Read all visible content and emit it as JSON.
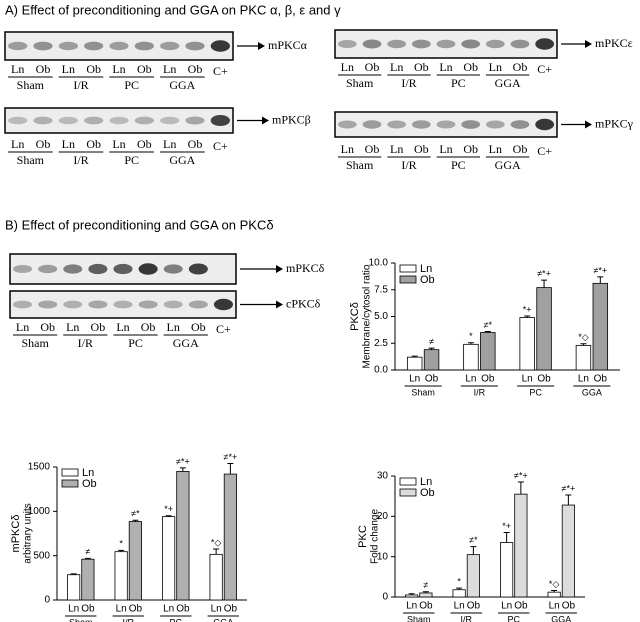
{
  "sections": {
    "a_title": "A) Effect of preconditioning and GGA on PKC α, β, ε and γ",
    "b_title": "B) Effect of preconditioning and GGA on PKCδ"
  },
  "blots": [
    {
      "label": "mPKCα"
    },
    {
      "label": "mPKCβ"
    },
    {
      "label": "mPKCε"
    },
    {
      "label": "mPKCγ"
    },
    {
      "label": "mPKCδ"
    },
    {
      "label": "cPKCδ"
    }
  ],
  "lanes": {
    "ln": "Ln",
    "ob": "Ob",
    "groups": [
      "Sham",
      "I/R",
      "PC",
      "GGA"
    ],
    "control": "C+"
  },
  "chart_data": [
    {
      "type": "bar",
      "ylabel": [
        "PKCδ",
        "Membrane/cytosol ratio"
      ],
      "categories": [
        "Sham",
        "I/R",
        "PC",
        "GGA"
      ],
      "series": [
        {
          "name": "Ln",
          "color": "#ffffff",
          "values": [
            1.2,
            2.4,
            4.9,
            2.3
          ],
          "errors": [
            0.1,
            0.15,
            0.15,
            0.15
          ],
          "annotations": [
            null,
            "*",
            "*+",
            "*◇"
          ]
        },
        {
          "name": "Ob",
          "color": "#a0a0a0",
          "values": [
            1.9,
            3.5,
            7.7,
            8.1
          ],
          "errors": [
            0.15,
            0.1,
            0.7,
            0.6
          ],
          "annotations": [
            "≠",
            "≠*",
            "≠*+",
            "≠*+"
          ]
        }
      ],
      "ylim": [
        0,
        10
      ],
      "yticks": [
        {
          "value": 0,
          "label": "0.0"
        },
        {
          "value": 2.5,
          "label": "2.5"
        },
        {
          "value": 5,
          "label": "5.0"
        },
        {
          "value": 7.5,
          "label": "7.5"
        },
        {
          "value": 10,
          "label": "10.0"
        }
      ],
      "legend": "upper left"
    },
    {
      "type": "bar",
      "ylabel": [
        "mPKCδ",
        "arbitrary units"
      ],
      "categories": [
        "Sham",
        "I/R",
        "PC",
        "GGA"
      ],
      "series": [
        {
          "name": "Ln",
          "color": "#ffffff",
          "values": [
            285,
            545,
            940,
            515
          ],
          "errors": [
            10,
            15,
            10,
            60
          ],
          "annotations": [
            null,
            "*",
            "*+",
            "*◇"
          ]
        },
        {
          "name": "Ob",
          "color": "#b0b0b0",
          "values": [
            460,
            885,
            1450,
            1420
          ],
          "errors": [
            10,
            15,
            40,
            120
          ],
          "annotations": [
            "≠",
            "≠*",
            "≠*+",
            "≠*+"
          ]
        }
      ],
      "ylim": [
        0,
        1500
      ],
      "yticks": [
        0,
        500,
        1000,
        1500
      ],
      "legend": "upper left"
    },
    {
      "type": "bar",
      "ylabel": [
        "PKC",
        "Fold change"
      ],
      "categories": [
        "Sham",
        "I/R",
        "PC",
        "GGA"
      ],
      "series": [
        {
          "name": "Ln",
          "color": "#ffffff",
          "values": [
            0.5,
            1.8,
            13.5,
            1.2
          ],
          "errors": [
            0.3,
            0.4,
            2.5,
            0.4
          ],
          "annotations": [
            null,
            "*",
            "*+",
            "*◇"
          ]
        },
        {
          "name": "Ob",
          "color": "#dcdcdc",
          "values": [
            1.0,
            10.5,
            25.5,
            22.8
          ],
          "errors": [
            0.3,
            2,
            3,
            2.5
          ],
          "annotations": [
            "≠",
            "≠*",
            "≠*+",
            "≠*+"
          ]
        }
      ],
      "ylim": [
        0,
        30
      ],
      "yticks": [
        0,
        10,
        20,
        30
      ],
      "legend": "upper left"
    }
  ]
}
